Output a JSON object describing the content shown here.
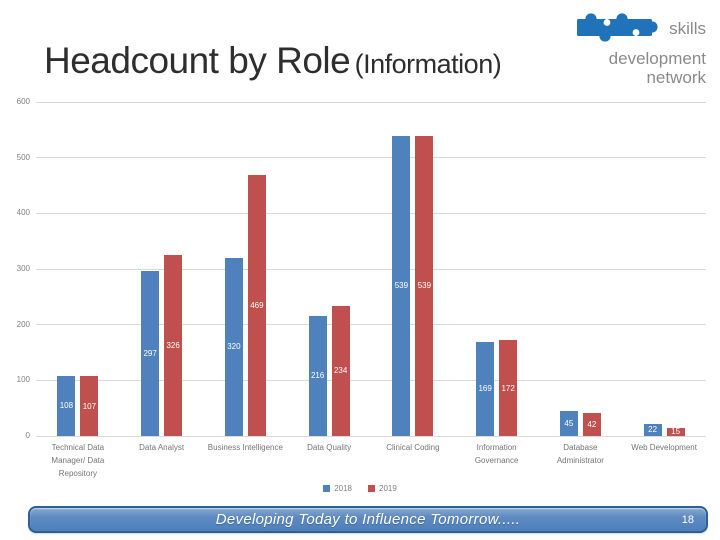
{
  "slide": {
    "title": {
      "main": "Headcount by Role",
      "qualifier": "(Information)"
    },
    "logo": {
      "word1": "skills",
      "word2": "development",
      "word3": "network"
    },
    "footer": {
      "text": "Developing Today to Influence Tomorrow.....",
      "page_number": "18"
    }
  },
  "chart_data": {
    "type": "bar",
    "title": "",
    "xlabel": "",
    "ylabel": "",
    "ylim": [
      0,
      600
    ],
    "yticks": [
      0,
      100,
      200,
      300,
      400,
      500,
      600
    ],
    "grid": "horizontal",
    "legend_position": "bottom",
    "data_labels": "inside-center-white",
    "categories": [
      "Technical Data Manager/ Data Repository",
      "Data Analyst",
      "Business Intelligence",
      "Data Quality",
      "Clinical Coding",
      "Information Governance",
      "Database Administrator",
      "Web Development"
    ],
    "category_label_lines": [
      "Technical Data\nManager/ Data\nRepository",
      "Data Analyst",
      "Business Intelligence",
      "Data Quality",
      "Clinical Coding",
      "Information\nGovernance",
      "Database\nAdministrator",
      "Web Development"
    ],
    "series": [
      {
        "name": "2018",
        "color": "#4F81BD",
        "values": [
          108,
          297,
          320,
          216,
          539,
          169,
          45,
          22
        ]
      },
      {
        "name": "2019",
        "color": "#C0504D",
        "values": [
          107,
          326,
          469,
          234,
          539,
          172,
          42,
          15
        ]
      }
    ]
  },
  "colors": {
    "bar_2018": "#4F81BD",
    "bar_2019": "#C0504D",
    "gridline": "#D9D9D9",
    "axis_text": "#7F7F7F",
    "category_text": "#757575",
    "title_text": "#2E2E2E",
    "logo_blue": "#2173B9",
    "logo_gray": "#8A8A8A",
    "footer_fill": "#4F81BD",
    "footer_border": "#2E5F96",
    "footer_text": "#FFFFFF"
  }
}
